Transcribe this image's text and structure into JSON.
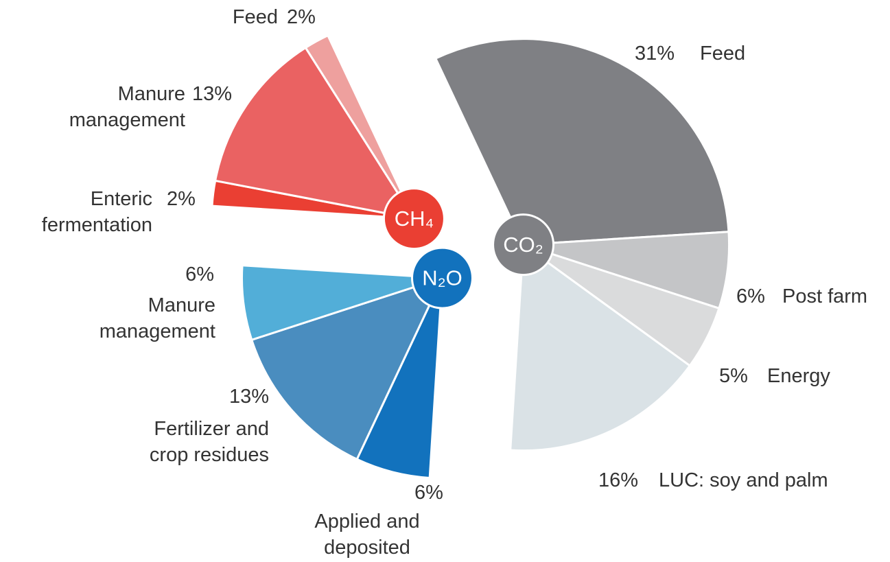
{
  "chart_data": {
    "type": "pie",
    "series": [
      {
        "name": "CO₂",
        "color": "#7f8084",
        "categories": [
          "Feed",
          "Post farm",
          "Energy",
          "LUC: soy and palm"
        ],
        "values": [
          31,
          6,
          5,
          16
        ],
        "value_labels": [
          "31%",
          "6%",
          "5%",
          "16%"
        ],
        "colors": [
          "#7f8084",
          "#c4c5c7",
          "#dadbdc",
          "#dae2e6"
        ]
      },
      {
        "name": "N₂O",
        "color": "#1272bd",
        "categories": [
          "Applied and deposited manure",
          "Fertilizer and crop residues",
          "Manure management"
        ],
        "values": [
          6,
          13,
          6
        ],
        "value_labels": [
          "6%",
          "13%",
          "6%"
        ],
        "colors": [
          "#1272bd",
          "#4a8dbf",
          "#52aed8"
        ]
      },
      {
        "name": "CH₄",
        "color": "#ea3f33",
        "categories": [
          "Enteric fermentation",
          "Manure management",
          "Feed"
        ],
        "values": [
          2,
          13,
          2
        ],
        "value_labels": [
          "2%",
          "13%",
          "2%"
        ],
        "colors": [
          "#ea3f33",
          "#ea6262",
          "#eea09e"
        ]
      }
    ]
  }
}
